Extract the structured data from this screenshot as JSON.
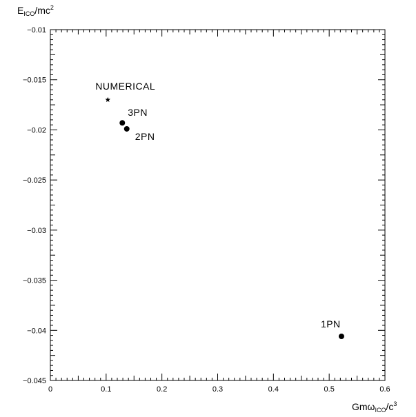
{
  "chart_data": {
    "type": "scatter",
    "title": "",
    "xlabel": {
      "main": "Gmω",
      "sub": "ICO",
      "tail": "/c",
      "sup": "3"
    },
    "ylabel": {
      "main": "E",
      "sub": "ICO",
      "tail": "/mc",
      "sup": "2"
    },
    "xlim": [
      0,
      0.6
    ],
    "ylim": [
      -0.045,
      -0.01
    ],
    "x_ticks": [
      0,
      0.1,
      0.2,
      0.3,
      0.4,
      0.5,
      0.6
    ],
    "y_ticks": [
      -0.01,
      -0.015,
      -0.02,
      -0.025,
      -0.03,
      -0.035,
      -0.04,
      -0.045
    ],
    "x_tick_labels": [
      "0",
      "0.1",
      "0.2",
      "0.3",
      "0.4",
      "0.5",
      "0.6"
    ],
    "y_tick_labels": [
      "−0.01",
      "−0.015",
      "−0.02",
      "−0.025",
      "−0.03",
      "−0.035",
      "−0.04",
      "−0.045"
    ],
    "grid": false,
    "points": [
      {
        "label": "NUMERICAL",
        "x": 0.103,
        "y": -0.017,
        "marker": "star"
      },
      {
        "label": "3PN",
        "x": 0.129,
        "y": -0.0193,
        "marker": "circle"
      },
      {
        "label": "2PN",
        "x": 0.137,
        "y": -0.0199,
        "marker": "circle"
      },
      {
        "label": "1PN",
        "x": 0.522,
        "y": -0.0406,
        "marker": "circle"
      }
    ]
  }
}
